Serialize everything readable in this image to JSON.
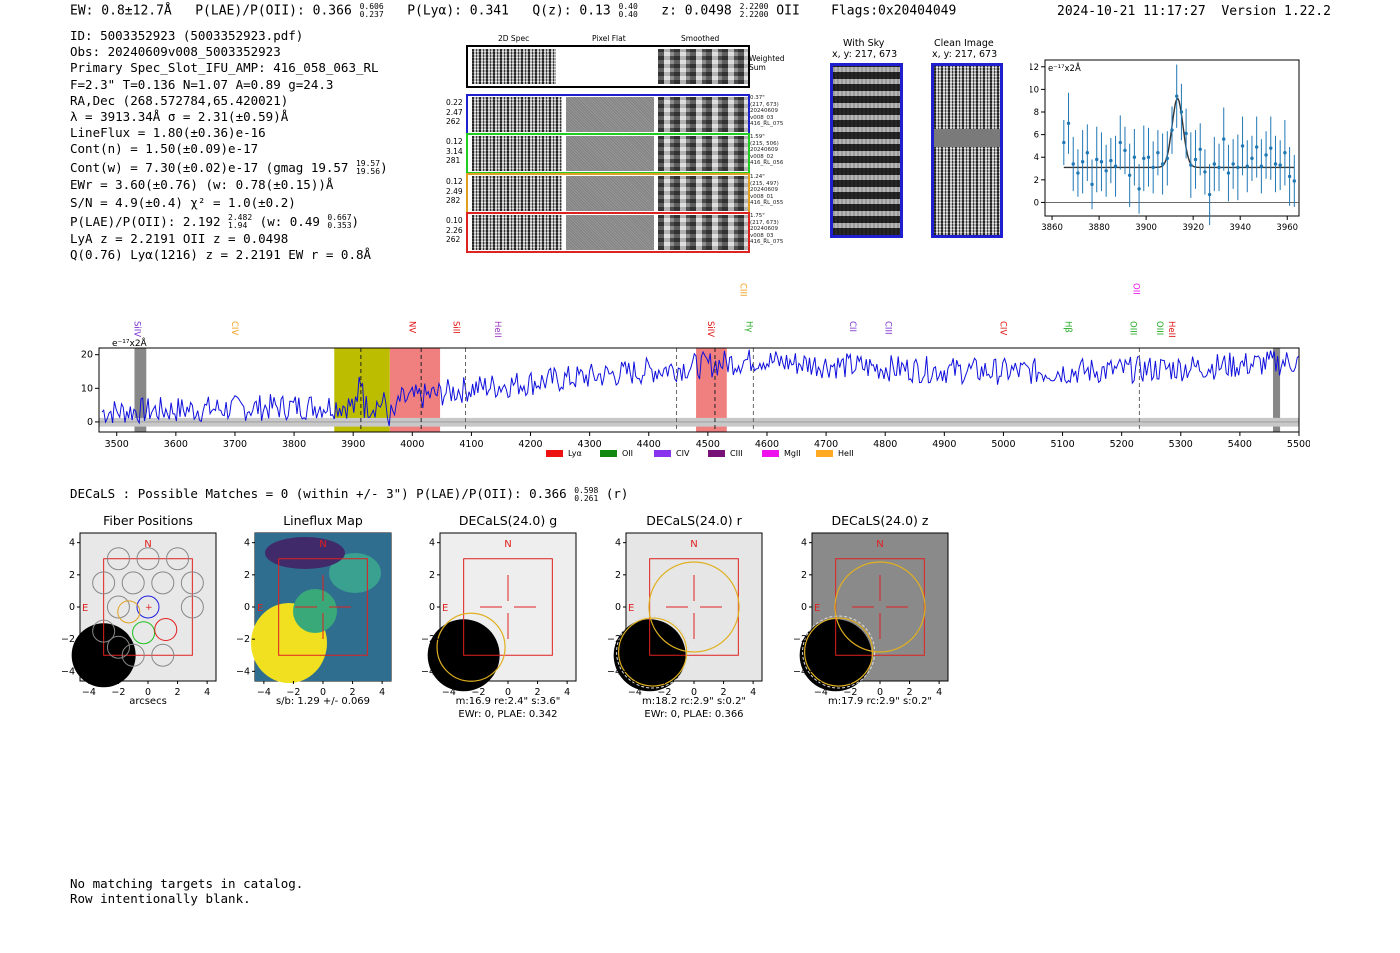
{
  "header": {
    "ew": "EW: 0.8±12.7Å",
    "plae_label": "P(LAE)/P(OII): 0.366",
    "plae_sup": "0.606",
    "plae_sub": "0.237",
    "plya": "P(Lyα): 0.341",
    "qz_label": "Q(z): 0.13",
    "qz_sup": "0.40",
    "qz_sub": "0.40",
    "z_label": "z: 0.0498",
    "z_sup": "2.2200",
    "z_sub": "2.2200",
    "z_line": "OII",
    "flags": "Flags:0x20404049",
    "timestamp": "2024-10-21 11:17:27",
    "version": "Version 1.22.2"
  },
  "info": {
    "id": "ID: 5003352923 (5003352923.pdf)",
    "obs": "Obs: 20240609v008_5003352923",
    "primary": "Primary Spec_Slot_IFU_AMP: 416_058_063_RL",
    "fwhm": "F=2.3\"  T=0.136  N=1.07  A=0.89  g=24.3",
    "radec": "RA,Dec (268.572784,65.420021)",
    "lambda": "λ = 3913.34Å  σ = 2.31(±0.59)Å",
    "lineflux": "LineFlux = 1.80(±0.36)e-16",
    "contn": "Cont(n) = 1.50(±0.09)e-17",
    "contw_main": "Cont(w) = 7.30(±0.02)e-17 (gmag 19.57",
    "contw_sup": "19.57",
    "contw_sub": "19.56",
    "contw_end": ")",
    "ewr": "EWr = 3.60(±0.76) (w: 0.78(±0.15))Å",
    "sn": "S/N = 4.9(±0.4)  χ² = 1.0(±0.2)",
    "plae_main": "P(LAE)/P(OII): 2.192",
    "plae_sup": "2.482",
    "plae_sub": "1.94",
    "plae_w": "(w: 0.49",
    "plae_w_sup": "0.667",
    "plae_w_sub": "0.353",
    "plae_end": ")",
    "lya": "LyA z = 2.2191  OII z = 0.0498",
    "q": "Q(0.76) Lyα(1216) z = 2.2191  EW r = 0.8Å"
  },
  "cutouts": {
    "col_titles": [
      "2D Spec",
      "Pixel Flat",
      "Smoothed"
    ],
    "weighted_label": "Weighted Sum",
    "rows": [
      {
        "vals": [
          "0.22",
          "2.47",
          "262"
        ],
        "meta": [
          "0.37\"",
          "(217, 673)",
          "20240609",
          "v008_03",
          "416_RL_075"
        ],
        "color": "#1f1fd0"
      },
      {
        "vals": [
          "0.12",
          "3.14",
          "281"
        ],
        "meta": [
          "1.59\"",
          "(215, 506)",
          "20240609",
          "v008_02",
          "416_RL_056"
        ],
        "color": "#22cc22"
      },
      {
        "vals": [
          "0.12",
          "2.49",
          "282"
        ],
        "meta": [
          "1.24\"",
          "(215, 497)",
          "20240609",
          "v008_01",
          "416_RL_055"
        ],
        "color": "#e0a020"
      },
      {
        "vals": [
          "0.10",
          "2.26",
          "262"
        ],
        "meta": [
          "1.75\"",
          "(217, 673)",
          "20240609",
          "v008_03",
          "416_RL_075"
        ],
        "color": "#dd2222"
      }
    ],
    "with_sky_title": "With Sky",
    "with_sky_coords": "x, y: 217, 673",
    "clean_title": "Clean Image",
    "clean_coords": "x, y: 217, 673"
  },
  "zoom_chart": {
    "unit_label": "e⁻¹⁷x2Å",
    "xticks": [
      "3860",
      "3880",
      "3900",
      "3920",
      "3940",
      "3960"
    ],
    "yticks": [
      "0",
      "2",
      "4",
      "6",
      "8",
      "10",
      "12"
    ]
  },
  "chart_data": [
    {
      "type": "scatter",
      "title": "",
      "xlim": [
        3857,
        3965
      ],
      "ylim": [
        -1.2,
        12.6
      ],
      "x": [
        3865,
        3867,
        3869,
        3871,
        3873,
        3875,
        3877,
        3879,
        3881,
        3883,
        3885,
        3887,
        3889,
        3891,
        3893,
        3895,
        3897,
        3899,
        3901,
        3903,
        3905,
        3907,
        3909,
        3911,
        3913,
        3915,
        3917,
        3919,
        3921,
        3923,
        3925,
        3927,
        3929,
        3931,
        3933,
        3935,
        3937,
        3939,
        3941,
        3943,
        3945,
        3947,
        3949,
        3951,
        3953,
        3955,
        3957,
        3959,
        3961,
        3963
      ],
      "y": [
        5.3,
        7.0,
        3.4,
        2.6,
        3.6,
        4.4,
        1.6,
        3.8,
        3.6,
        2.8,
        3.7,
        3.2,
        5.3,
        4.6,
        2.4,
        4.0,
        1.2,
        3.9,
        4.0,
        3.1,
        4.4,
        3.4,
        3.9,
        6.4,
        9.4,
        8.0,
        6.1,
        3.3,
        3.8,
        4.7,
        2.7,
        0.7,
        3.4,
        3.1,
        5.6,
        2.6,
        3.4,
        3.1,
        5.0,
        3.2,
        3.9,
        4.9,
        3.2,
        4.2,
        4.8,
        3.4,
        3.3,
        4.4,
        2.3,
        1.9
      ],
      "model_peak": 9.2,
      "model_center": 3913.34,
      "model_continuum": 3.1
    },
    {
      "type": "line",
      "title": "",
      "unit_label": "e⁻¹⁷x2Å",
      "xlim": [
        3470,
        5500
      ],
      "ylim": [
        -3,
        22
      ],
      "xticks": [
        3500,
        3600,
        3700,
        3800,
        3900,
        4000,
        4100,
        4200,
        4300,
        4400,
        4500,
        4600,
        4700,
        4800,
        4900,
        5000,
        5100,
        5200,
        5300,
        5400,
        5500
      ],
      "yticks": [
        0,
        10,
        20
      ],
      "line_labels": [
        {
          "name": "SiIV",
          "x": 3525,
          "color": "#7b2fd0",
          "row": 1
        },
        {
          "name": "CIV",
          "x": 3690,
          "color": "#f0a020",
          "row": 1
        },
        {
          "name": "NV",
          "x": 3990,
          "color": "#e01010",
          "row": 1
        },
        {
          "name": "SiII",
          "x": 4065,
          "color": "#e01010",
          "row": 1
        },
        {
          "name": "HeII",
          "x": 4135,
          "color": "#9a30c0",
          "row": 1
        },
        {
          "name": "SiIV",
          "x": 4495,
          "color": "#e01010",
          "row": 1
        },
        {
          "name": "CIII",
          "x": 4550,
          "color": "#f0a020",
          "row": 3
        },
        {
          "name": "Hγ",
          "x": 4560,
          "color": "#22aa22",
          "row": 1
        },
        {
          "name": "CII",
          "x": 4735,
          "color": "#7b2fd0",
          "row": 1
        },
        {
          "name": "CIII",
          "x": 4795,
          "color": "#7b2fd0",
          "row": 1
        },
        {
          "name": "CIV",
          "x": 4990,
          "color": "#e01010",
          "row": 1
        },
        {
          "name": "Hβ",
          "x": 5100,
          "color": "#22aa22",
          "row": 1
        },
        {
          "name": "OIII",
          "x": 5210,
          "color": "#22aa22",
          "row": 1
        },
        {
          "name": "OII",
          "x": 5215,
          "color": "#ee10ee",
          "row": 3
        },
        {
          "name": "OIII",
          "x": 5255,
          "color": "#22aa22",
          "row": 1
        },
        {
          "name": "HeII",
          "x": 5275,
          "color": "#e01010",
          "row": 1
        }
      ],
      "legend": [
        {
          "name": "Lyα",
          "color": "#ee1111"
        },
        {
          "name": "OII",
          "color": "#118811"
        },
        {
          "name": "CIV",
          "color": "#8833ee"
        },
        {
          "name": "CIII",
          "color": "#771177"
        },
        {
          "name": "MgII",
          "color": "#ee11ee"
        },
        {
          "name": "HeII",
          "color": "#ffaa22"
        }
      ]
    }
  ],
  "decals": {
    "summary_main": "DECaLS : Possible Matches = 0 (within +/- 3\")  P(LAE)/P(OII): 0.366",
    "summary_sup": "0.598",
    "summary_sub": "0.261",
    "summary_end": "(r)",
    "panels": [
      {
        "title": "Fiber Positions",
        "xlabel": "arcsecs",
        "sub1": "",
        "sub2": ""
      },
      {
        "title": "Lineflux Map",
        "xlabel": "s/b: 1.29 +/- 0.069",
        "sub1": "",
        "sub2": ""
      },
      {
        "title": "DECaLS(24.0) g",
        "xlabel": "m:16.9  re:2.4\"  s:3.6\"",
        "sub1": "EWr: 0, PLAE: 0.342",
        "sub2": ""
      },
      {
        "title": "DECaLS(24.0) r",
        "xlabel": "m:18.2 rc:2.9\"  s:0.2\"",
        "sub1": "EWr: 0, PLAE: 0.366",
        "sub2": ""
      },
      {
        "title": "DECaLS(24.0) z",
        "xlabel": "m:17.9 rc:2.9\"  s:0.2\"",
        "sub1": "",
        "sub2": ""
      }
    ],
    "axis_ticks": [
      "4",
      "2",
      "0",
      "−2",
      "−4"
    ],
    "xaxis_ticks": [
      "−4",
      "−2",
      "0",
      "2",
      "4"
    ],
    "north_label": "N",
    "east_label": "E"
  },
  "footer": {
    "line1": "No matching targets in catalog.",
    "line2": "Row intentionally blank."
  }
}
